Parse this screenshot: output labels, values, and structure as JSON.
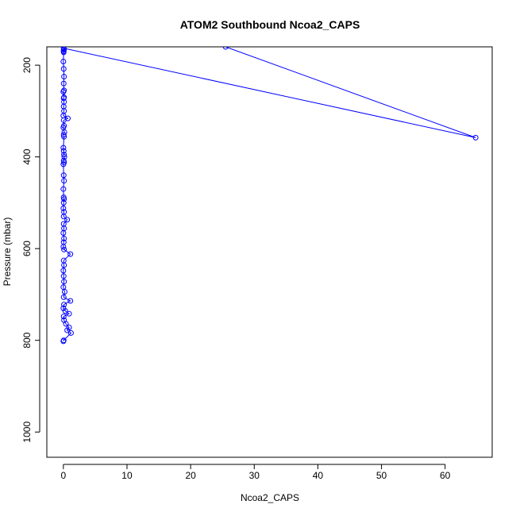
{
  "chart_data": {
    "type": "line",
    "title": "ATOM2 Southbound Ncoa2_CAPS",
    "xlabel": "Ncoa2_CAPS",
    "ylabel": "Pressure (mbar)",
    "xlim": [
      -2.6,
      67.4
    ],
    "ylim": [
      1055,
      160
    ],
    "y_reversed": true,
    "x_ticks": [
      0,
      10,
      20,
      30,
      40,
      50,
      60
    ],
    "y_ticks": [
      200,
      400,
      600,
      800,
      1000
    ],
    "grid": false,
    "legend": "none",
    "line_color": "#0000ff",
    "marker": "open-circle",
    "series": [
      {
        "points": [
          [
            25.5,
            160
          ],
          [
            64.8,
            358
          ],
          [
            0.05,
            163
          ],
          [
            0.05,
            167
          ],
          [
            0.05,
            170
          ],
          [
            0.1,
            165
          ],
          [
            0.05,
            172
          ],
          [
            0.0,
            192
          ],
          [
            0.05,
            208
          ],
          [
            0.1,
            225
          ],
          [
            0.05,
            240
          ],
          [
            0.1,
            255
          ],
          [
            0.0,
            258
          ],
          [
            0.1,
            270
          ],
          [
            0.05,
            272
          ],
          [
            0.1,
            280
          ],
          [
            0.05,
            290
          ],
          [
            0.1,
            300
          ],
          [
            0.0,
            310
          ],
          [
            0.7,
            316
          ],
          [
            0.05,
            320
          ],
          [
            0.1,
            332
          ],
          [
            0.0,
            336
          ],
          [
            0.15,
            346
          ],
          [
            0.05,
            352
          ],
          [
            0.1,
            356
          ],
          [
            0.0,
            380
          ],
          [
            0.05,
            387
          ],
          [
            0.1,
            395
          ],
          [
            0.15,
            400
          ],
          [
            0.05,
            408
          ],
          [
            0.1,
            412
          ],
          [
            0.0,
            416
          ],
          [
            0.05,
            440
          ],
          [
            0.1,
            452
          ],
          [
            0.0,
            470
          ],
          [
            0.05,
            488
          ],
          [
            0.1,
            492
          ],
          [
            0.05,
            500
          ],
          [
            0.0,
            512
          ],
          [
            0.1,
            520
          ],
          [
            0.05,
            530
          ],
          [
            0.6,
            537
          ],
          [
            0.05,
            546
          ],
          [
            0.1,
            556
          ],
          [
            0.0,
            566
          ],
          [
            0.1,
            578
          ],
          [
            0.05,
            586
          ],
          [
            0.0,
            596
          ],
          [
            0.1,
            602
          ],
          [
            1.1,
            612
          ],
          [
            0.05,
            626
          ],
          [
            0.1,
            636
          ],
          [
            0.0,
            648
          ],
          [
            0.05,
            660
          ],
          [
            0.1,
            672
          ],
          [
            0.0,
            684
          ],
          [
            0.2,
            694
          ],
          [
            0.05,
            706
          ],
          [
            1.1,
            714
          ],
          [
            0.1,
            722
          ],
          [
            0.0,
            730
          ],
          [
            0.3,
            736
          ],
          [
            0.9,
            742
          ],
          [
            0.05,
            748
          ],
          [
            0.1,
            756
          ],
          [
            0.4,
            764
          ],
          [
            0.9,
            772
          ],
          [
            0.6,
            778
          ],
          [
            1.2,
            784
          ],
          [
            0.05,
            800
          ],
          [
            0.0,
            802
          ]
        ]
      }
    ]
  }
}
